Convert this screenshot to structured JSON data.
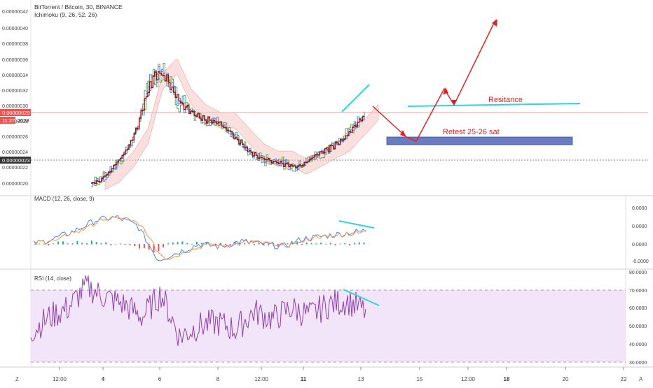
{
  "header": {
    "symbol": "BitTorrent / Bitcoin, 30, BINANCE",
    "indicator": "Ichimoku (9, 26, 52, 26)"
  },
  "price_pane": {
    "price_ticks": [
      "0.00000042",
      "0.00000040",
      "0.00000038",
      "0.00000036",
      "0.00000034",
      "0.00000032",
      "0.00000030",
      "0.00000028",
      "0.00000026",
      "0.00000024",
      "0.00000022",
      "0.00000020"
    ],
    "last_price_label": "0.00000029",
    "countdown_label": "11:27",
    "partial_label": "2028",
    "low_level_label": "0.00000023",
    "annotations": {
      "resistance": "Resitance",
      "retest": "Retest 25-26 sat"
    }
  },
  "macd_pane": {
    "title": "MACD (12, 26, close, 9)",
    "ticks": [
      "0.0000",
      "0.0000",
      "0.0000",
      "-0.0000"
    ]
  },
  "rsi_pane": {
    "title": "RSI (14, close)",
    "ticks": [
      "80.0000",
      "70.0000",
      "60.0000",
      "50.0000",
      "40.0000",
      "30.0000"
    ]
  },
  "time_axis": {
    "labels": [
      "12:00",
      "4",
      "6",
      "8",
      "12:00",
      "11",
      "13",
      "15",
      "12:00",
      "18",
      "20",
      "22"
    ],
    "left_icon": "Z",
    "right_icon": "A"
  },
  "colors": {
    "price_line": "#8b1a1a",
    "kijun": "#6aa84f",
    "tenkan": "#4a86e8",
    "cloud_bull": "#b6d7a8",
    "cloud_bear": "#f4c7c3",
    "macd_line": "#4a86e8",
    "signal_line": "#ff8c42",
    "hist_up": "#26a69a",
    "hist_down": "#ef5350",
    "rsi_line": "#8e3fb3",
    "rsi_band": "#f3e5f9",
    "annotation_arrow": "#e02424",
    "annotation_cyan": "#2fd3e4",
    "retest_box": "#6b7bbf"
  },
  "chart_data": [
    {
      "type": "line",
      "x_labels": [
        "12:00",
        "4",
        "6",
        "8",
        "12:00",
        "11",
        "13",
        "15",
        "12:00",
        "18",
        "20",
        "22"
      ],
      "ylim": [
        1.95e-07,
        4.25e-07
      ],
      "series": [
        {
          "values": [
            2e-07,
            2.1e-07,
            2.3e-07,
            2.6e-07,
            3.3e-07,
            3.5e-07,
            3.1e-07,
            2.9e-07,
            2.8e-07,
            2.8e-07,
            2.6e-07,
            2.4e-07,
            2.3e-07,
            2.3e-07,
            2.2e-07,
            2.3e-07,
            2.4e-07,
            2.5e-07,
            2.7e-07,
            2.9e-07
          ]
        }
      ]
    },
    {
      "type": "line",
      "title": "MACD (12, 26, close, 9)",
      "x_labels": [
        "12:00",
        "4",
        "6",
        "8",
        "12:00",
        "11",
        "13"
      ],
      "series": [
        {
          "values": [
            0.0,
            0.2,
            0.5,
            0.9,
            1.0,
            0.7,
            -0.6,
            -0.3,
            0.0,
            -0.1,
            0.1,
            0.0,
            -0.1,
            0.2,
            0.3,
            0.4,
            0.5
          ]
        }
      ]
    },
    {
      "type": "line",
      "title": "RSI (14, close)",
      "x_labels": [
        "12:00",
        "4",
        "6",
        "8",
        "12:00",
        "11",
        "13"
      ],
      "ylim": [
        28,
        80
      ],
      "series": [
        {
          "values": [
            47,
            55,
            60,
            72,
            66,
            62,
            55,
            68,
            44,
            50,
            52,
            48,
            58,
            54,
            60,
            56,
            62,
            64,
            58
          ]
        }
      ]
    }
  ]
}
